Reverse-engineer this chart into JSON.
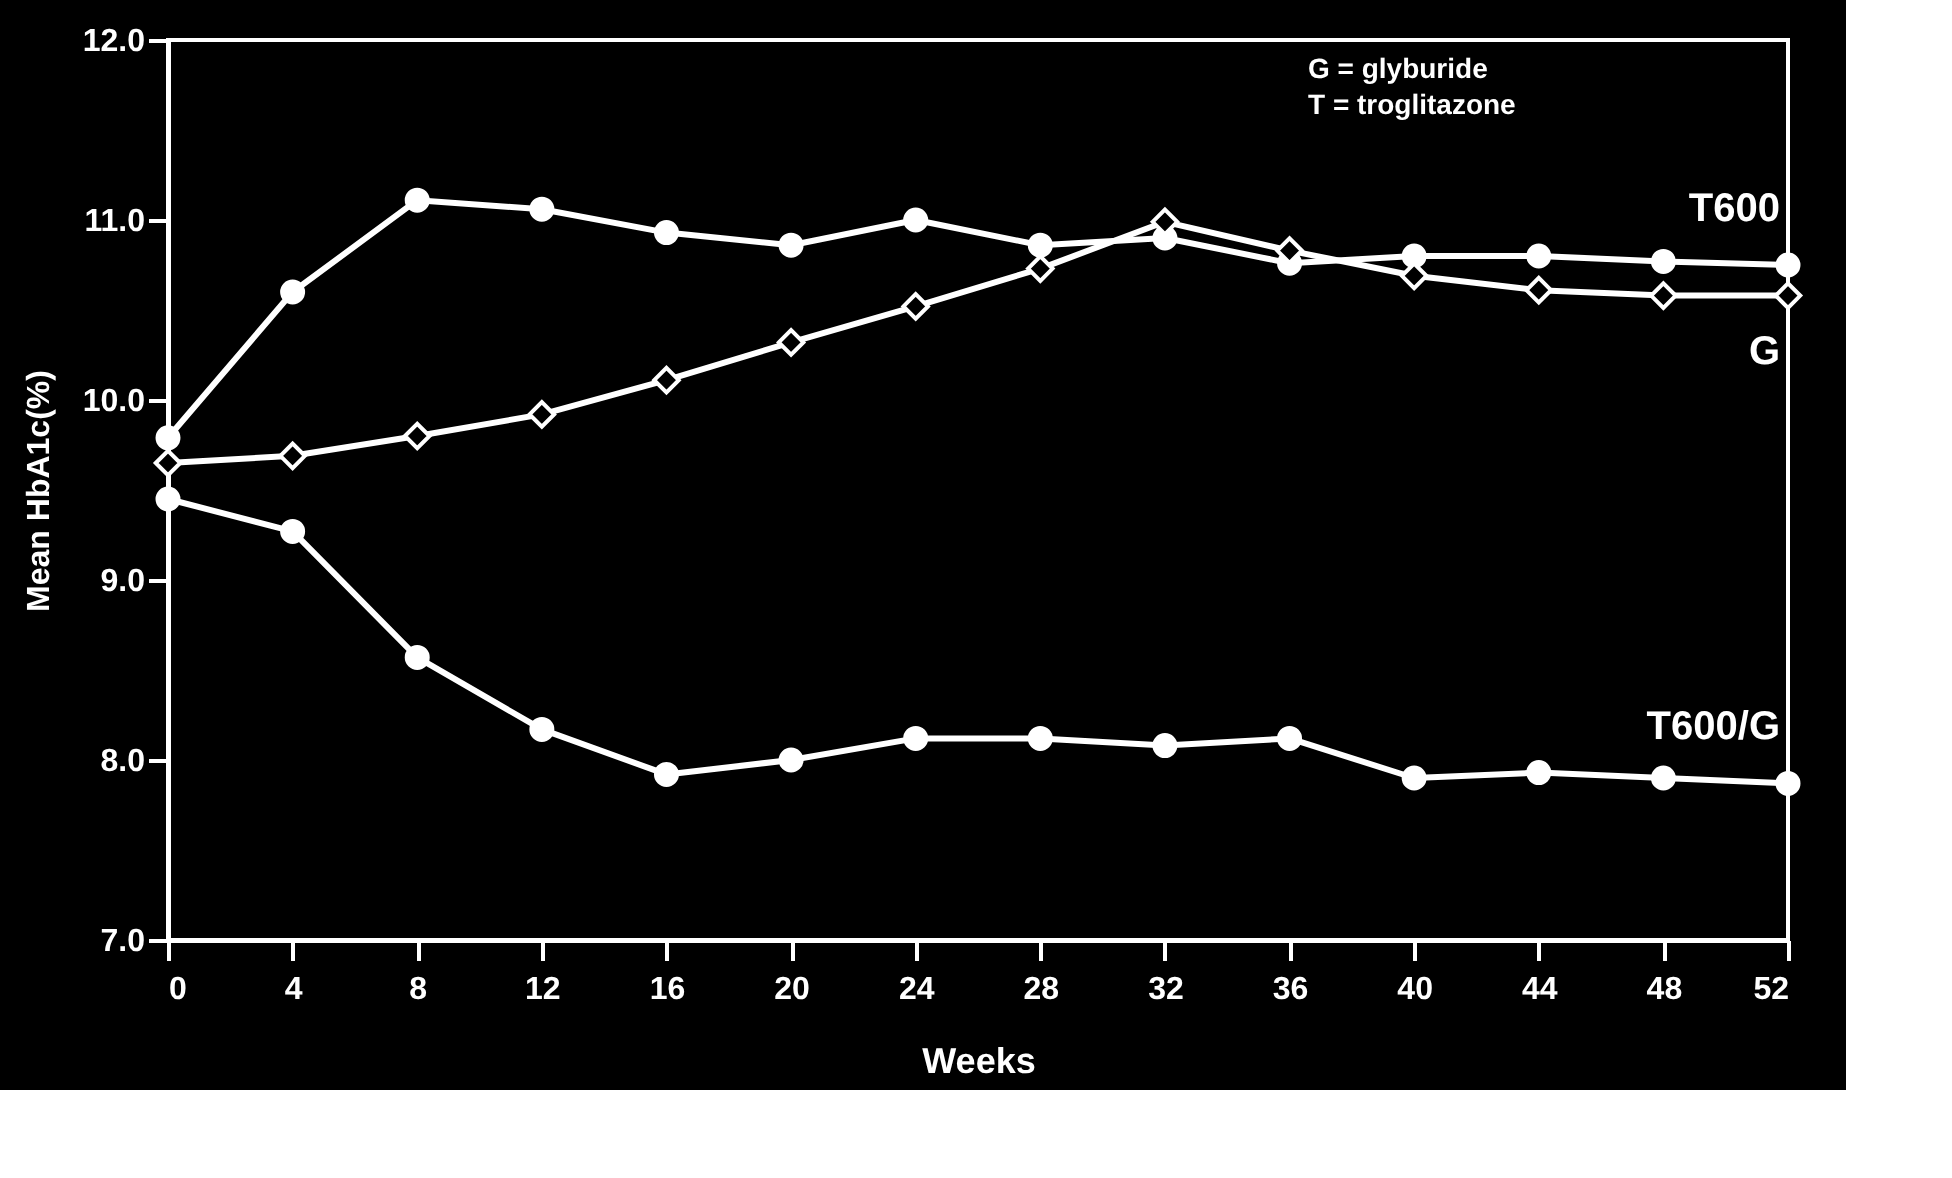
{
  "chart_data": {
    "type": "line",
    "xlabel": "Weeks",
    "ylabel": "Mean HbA1c(%)",
    "x": [
      0,
      4,
      8,
      12,
      16,
      20,
      24,
      28,
      32,
      36,
      40,
      44,
      48,
      52
    ],
    "series": [
      {
        "name": "T600",
        "color": "#ffffff",
        "marker": "circle",
        "values": [
          9.79,
          10.6,
          11.11,
          11.06,
          10.93,
          10.86,
          11.0,
          10.86,
          10.9,
          10.76,
          10.8,
          10.8,
          10.77,
          10.75
        ]
      },
      {
        "name": "G",
        "color": "#ffffff",
        "marker": "diamond",
        "values": [
          9.65,
          9.69,
          9.8,
          9.92,
          10.11,
          10.32,
          10.52,
          10.73,
          10.99,
          10.83,
          10.69,
          10.61,
          10.58,
          10.58
        ]
      },
      {
        "name": "T600/G",
        "color": "#ffffff",
        "marker": "circle",
        "values": [
          9.45,
          9.27,
          8.57,
          8.17,
          7.92,
          8.0,
          8.12,
          8.12,
          8.08,
          8.12,
          7.9,
          7.93,
          7.9,
          7.87
        ]
      }
    ],
    "annotations": [
      "G = glyburide",
      "T = troglitazone"
    ],
    "xlim": [
      0,
      52
    ],
    "xticks": [
      0,
      4,
      8,
      12,
      16,
      20,
      24,
      28,
      32,
      36,
      40,
      44,
      48,
      52
    ],
    "ylim": [
      7,
      12
    ],
    "yticks": [
      {
        "value": 7,
        "label": "7.0"
      },
      {
        "value": 8,
        "label": "8.0"
      },
      {
        "value": 9,
        "label": "9.0"
      },
      {
        "value": 10,
        "label": "10.0"
      },
      {
        "value": 11,
        "label": "11.0"
      },
      {
        "value": 12,
        "label": "12.0"
      }
    ],
    "grid": false,
    "line_style": "solid"
  }
}
